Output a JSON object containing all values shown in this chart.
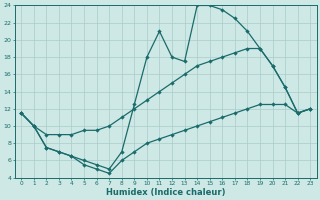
{
  "xlabel": "Humidex (Indice chaleur)",
  "background_color": "#cde8e5",
  "grid_color": "#aaccca",
  "line_color": "#1a6b6b",
  "xlim": [
    -0.5,
    23.5
  ],
  "ylim": [
    4,
    24
  ],
  "xticks": [
    0,
    1,
    2,
    3,
    4,
    5,
    6,
    7,
    8,
    9,
    10,
    11,
    12,
    13,
    14,
    15,
    16,
    17,
    18,
    19,
    20,
    21,
    22,
    23
  ],
  "yticks": [
    4,
    6,
    8,
    10,
    12,
    14,
    16,
    18,
    20,
    22,
    24
  ],
  "line1_x": [
    0,
    1,
    2,
    3,
    4,
    5,
    6,
    7,
    8,
    9,
    10,
    11,
    12,
    13,
    14,
    15,
    16,
    17,
    18,
    19,
    20,
    21,
    22,
    23
  ],
  "line1_y": [
    11.5,
    10.0,
    7.5,
    7.0,
    6.5,
    6.0,
    5.5,
    5.0,
    7.0,
    12.5,
    18.0,
    21.0,
    18.0,
    17.5,
    24.0,
    24.0,
    23.5,
    22.5,
    21.0,
    19.0,
    17.0,
    14.5,
    11.5,
    12.0
  ],
  "line2_x": [
    0,
    1,
    2,
    3,
    4,
    5,
    6,
    7,
    8,
    9,
    10,
    11,
    12,
    13,
    14,
    15,
    16,
    17,
    18,
    19,
    20,
    21,
    22,
    23
  ],
  "line2_y": [
    11.5,
    10.0,
    9.0,
    9.0,
    9.0,
    9.5,
    9.5,
    10.0,
    11.0,
    12.0,
    13.0,
    14.0,
    15.0,
    16.0,
    17.0,
    17.5,
    18.0,
    18.5,
    19.0,
    19.0,
    17.0,
    14.5,
    11.5,
    12.0
  ],
  "line3_x": [
    0,
    1,
    2,
    3,
    4,
    5,
    6,
    7,
    8,
    9,
    10,
    11,
    12,
    13,
    14,
    15,
    16,
    17,
    18,
    19,
    20,
    21,
    22,
    23
  ],
  "line3_y": [
    11.5,
    10.0,
    7.5,
    7.0,
    6.5,
    5.5,
    5.0,
    4.5,
    6.0,
    7.0,
    8.0,
    8.5,
    9.0,
    9.5,
    10.0,
    10.5,
    11.0,
    11.5,
    12.0,
    12.5,
    12.5,
    12.5,
    11.5,
    12.0
  ]
}
